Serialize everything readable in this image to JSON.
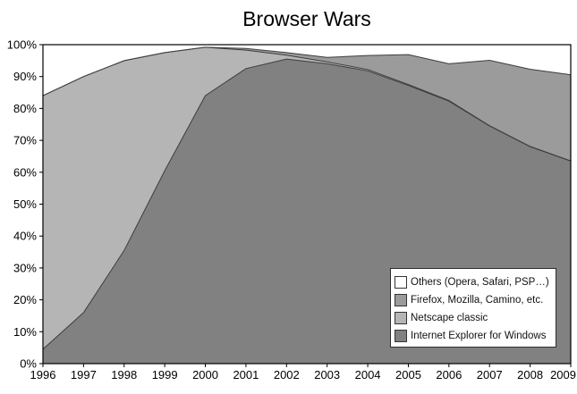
{
  "chart_data": {
    "type": "area",
    "stacked": true,
    "title": "Browser Wars",
    "x": [
      1996,
      1997,
      1998,
      1999,
      2000,
      2001,
      2002,
      2003,
      2004,
      2005,
      2006,
      2007,
      2008,
      2009
    ],
    "xlabel": "",
    "ylabel": "",
    "ylim": [
      0,
      100
    ],
    "ytick_labels": [
      "0%",
      "10%",
      "20%",
      "30%",
      "40%",
      "50%",
      "60%",
      "70%",
      "80%",
      "90%",
      "100%"
    ],
    "grid": false,
    "legend_position": "inside-bottom-right",
    "series": [
      {
        "name": "Internet Explorer for Windows",
        "color": "#818181",
        "values": [
          4.5,
          16,
          35.5,
          60.5,
          84,
          92.5,
          95.5,
          94,
          91.8,
          87.2,
          82.3,
          74.5,
          68,
          63.5
        ]
      },
      {
        "name": "Netscape classic",
        "color": "#b5b5b5",
        "values": [
          79.5,
          74,
          59.5,
          37,
          15.2,
          5.8,
          1.2,
          0.6,
          0.4,
          0.3,
          0.2,
          0.1,
          0.1,
          0.05
        ]
      },
      {
        "name": "Firefox, Mozilla, Camino, etc.",
        "color": "#9b9b9b",
        "values": [
          0,
          0,
          0,
          0,
          0,
          0.5,
          0.8,
          1.4,
          4.4,
          9.4,
          11.5,
          20.5,
          24.2,
          27
        ]
      },
      {
        "name": "Others (Opera, Safari, PSP…)",
        "color": "#ffffff",
        "values": [
          16,
          10,
          5,
          2.5,
          0.8,
          1.2,
          2.5,
          4,
          3.4,
          3.1,
          6,
          4.9,
          7.7,
          9.45
        ]
      }
    ]
  },
  "legend": {
    "items": [
      {
        "label": "Others (Opera, Safari, PSP…)",
        "color": "#ffffff"
      },
      {
        "label": "Firefox, Mozilla, Camino, etc.",
        "color": "#9b9b9b"
      },
      {
        "label": "Netscape classic",
        "color": "#b5b5b5"
      },
      {
        "label": "Internet Explorer for Windows",
        "color": "#818181"
      }
    ]
  }
}
